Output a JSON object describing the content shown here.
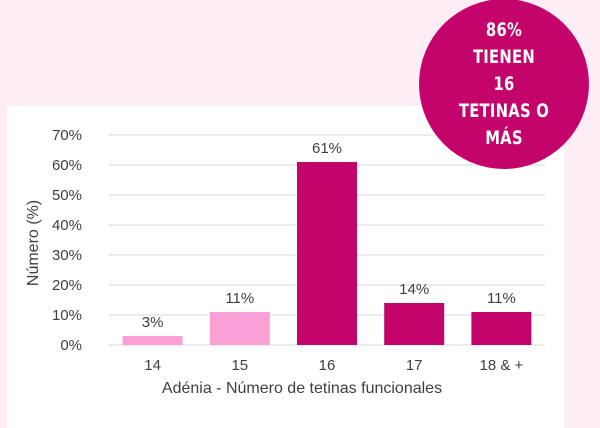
{
  "badge": {
    "text": "86% TIENEN\n16 TETINAS O\nMÁS"
  },
  "chart_data": {
    "type": "bar",
    "categories": [
      "14",
      "15",
      "16",
      "17",
      "18 & +"
    ],
    "values": [
      3,
      11,
      61,
      14,
      11
    ],
    "data_labels": [
      "3%",
      "11%",
      "61%",
      "14%",
      "11%"
    ],
    "bar_colors": [
      "#f9a0d6",
      "#f9a0d6",
      "#c2046b",
      "#c2046b",
      "#c2046b"
    ],
    "title": "",
    "xlabel": "Adénia - Número de tetinas funcionales",
    "ylabel": "Número (%)",
    "ylim": [
      0,
      70
    ],
    "yticks": [
      0,
      10,
      20,
      30,
      40,
      50,
      60,
      70
    ],
    "ytick_labels": [
      "0%",
      "10%",
      "20%",
      "30%",
      "40%",
      "50%",
      "60%",
      "70%"
    ],
    "grid": true
  },
  "colors": {
    "background": "#fdeef5",
    "panel": "#ffffff",
    "accent": "#c2046b",
    "accent_light": "#f9a0d6",
    "grid": "#d9d9d9",
    "text": "#404040"
  }
}
